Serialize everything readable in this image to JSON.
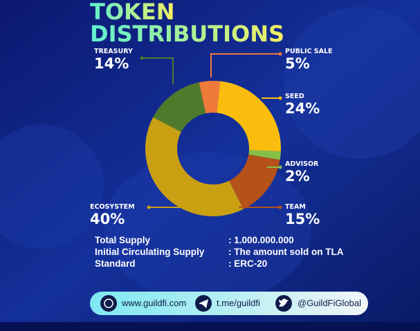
{
  "chart_data": {
    "type": "donut",
    "title_lines": [
      "TOKEN",
      "DISTRIBUTIONS"
    ],
    "categories": [
      "PUBLIC SALE",
      "SEED",
      "ADVISOR",
      "TEAM",
      "ECOSYSTEM",
      "TREASURY"
    ],
    "values": [
      5,
      24,
      2,
      15,
      40,
      14
    ],
    "value_labels": [
      "5%",
      "24%",
      "2%",
      "15%",
      "40%",
      "14%"
    ],
    "colors": [
      "#f07a3a",
      "#fbbd0d",
      "#86c048",
      "#b4521a",
      "#c9a012",
      "#4f7a2b"
    ]
  },
  "supply": [
    [
      "Total Supply",
      ": 1.000.000.000"
    ],
    [
      "Initial Circulating Supply",
      ": The amount sold on TLA"
    ],
    [
      "Standard",
      ": ERC-20"
    ]
  ],
  "links": [
    "www.guildfi.com",
    "t.me/guildfi",
    "@GuildFiGlobal"
  ]
}
